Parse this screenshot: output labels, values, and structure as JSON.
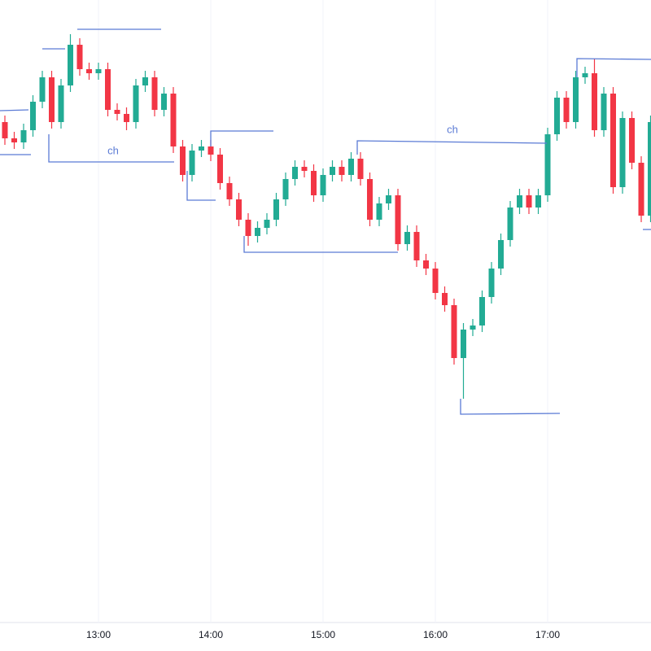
{
  "chart_data": {
    "type": "candlestick",
    "categories": [
      null,
      null,
      null,
      null,
      null,
      null,
      null,
      null,
      null,
      null,
      "13:00",
      null,
      null,
      null,
      null,
      null,
      null,
      null,
      null,
      null,
      null,
      null,
      "14:00",
      null,
      null,
      null,
      null,
      null,
      null,
      null,
      null,
      null,
      null,
      null,
      "15:00",
      null,
      null,
      null,
      null,
      null,
      null,
      null,
      null,
      null,
      null,
      null,
      "16:00",
      null,
      null,
      null,
      null,
      null,
      null,
      null,
      null,
      null,
      null,
      null,
      "17:00",
      null,
      null,
      null,
      null,
      null,
      null,
      null,
      null,
      null,
      null,
      null
    ],
    "open": [
      650,
      630,
      625,
      640,
      675,
      705,
      650,
      695,
      745,
      715,
      710,
      715,
      665,
      660,
      650,
      695,
      705,
      665,
      685,
      620,
      585,
      615,
      620,
      610,
      575,
      555,
      530,
      510,
      520,
      530,
      555,
      580,
      595,
      590,
      560,
      585,
      595,
      585,
      605,
      580,
      530,
      550,
      560,
      500,
      515,
      480,
      470,
      440,
      425,
      360,
      395,
      400,
      435,
      470,
      505,
      545,
      560,
      545,
      560,
      635,
      680,
      650,
      705,
      710,
      640,
      685,
      570,
      655,
      600,
      535
    ],
    "high": [
      658,
      638,
      648,
      683,
      713,
      713,
      703,
      758,
      753,
      723,
      723,
      723,
      673,
      668,
      703,
      713,
      713,
      693,
      693,
      628,
      623,
      628,
      628,
      618,
      583,
      563,
      538,
      528,
      538,
      563,
      588,
      603,
      603,
      598,
      593,
      603,
      603,
      613,
      613,
      588,
      558,
      568,
      568,
      523,
      523,
      488,
      478,
      448,
      433,
      403,
      408,
      443,
      478,
      513,
      553,
      568,
      568,
      568,
      643,
      688,
      688,
      713,
      718,
      728,
      693,
      693,
      663,
      663,
      608,
      658
    ],
    "low": [
      622,
      617,
      617,
      632,
      667,
      642,
      642,
      687,
      707,
      702,
      702,
      657,
      652,
      640,
      642,
      687,
      657,
      657,
      612,
      577,
      577,
      607,
      602,
      567,
      547,
      522,
      498,
      502,
      512,
      522,
      547,
      572,
      582,
      552,
      552,
      577,
      577,
      577,
      572,
      522,
      522,
      542,
      492,
      492,
      472,
      462,
      432,
      417,
      352,
      310,
      387,
      392,
      427,
      462,
      497,
      537,
      537,
      537,
      552,
      627,
      642,
      642,
      697,
      632,
      632,
      562,
      562,
      592,
      527,
      527
    ],
    "close": [
      630,
      625,
      640,
      675,
      705,
      650,
      695,
      745,
      715,
      710,
      715,
      665,
      660,
      650,
      695,
      705,
      665,
      685,
      620,
      585,
      615,
      620,
      610,
      575,
      555,
      530,
      510,
      520,
      530,
      555,
      580,
      595,
      590,
      560,
      585,
      595,
      585,
      605,
      580,
      530,
      550,
      560,
      500,
      515,
      480,
      470,
      440,
      425,
      360,
      395,
      400,
      435,
      470,
      505,
      545,
      560,
      545,
      560,
      635,
      680,
      650,
      705,
      710,
      640,
      685,
      570,
      655,
      600,
      535,
      650
    ],
    "up_color": "#22ab94",
    "down_color": "#f23645",
    "ylim": [
      35,
      800
    ],
    "grid": true,
    "annotations": [
      "ch",
      "ch"
    ]
  }
}
